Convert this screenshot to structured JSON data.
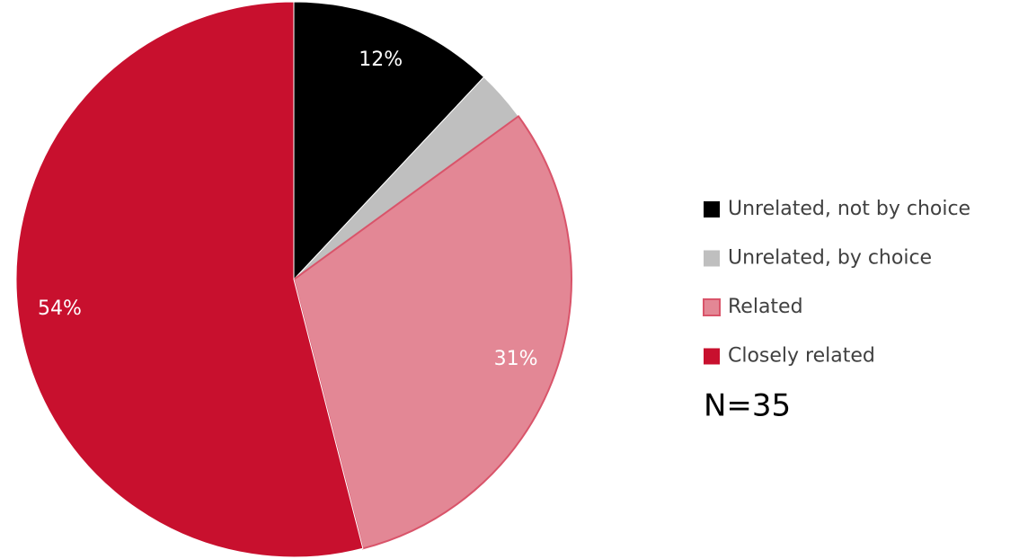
{
  "chart_data": {
    "type": "pie",
    "categories": [
      "Unrelated, not by choice",
      "Unrelated, by choice",
      "Related",
      "Closely related"
    ],
    "values": [
      12,
      3,
      31,
      54
    ],
    "value_labels": [
      "12%",
      null,
      "31%",
      "54%"
    ],
    "colors": [
      "#000000",
      "#bfbfbf",
      "#e38795",
      "#c8102e"
    ],
    "annotation": "N=35",
    "legend": "right"
  }
}
